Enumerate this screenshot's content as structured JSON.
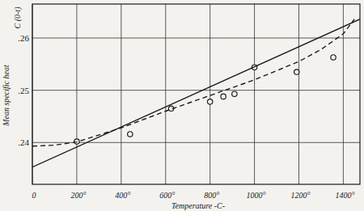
{
  "chart_data": {
    "type": "scatter",
    "xlabel": "Temperature -C-",
    "ylabel": "Mean specific heat",
    "annotations": [
      "C (0-t)"
    ],
    "xlim": [
      0,
      1475
    ],
    "ylim": [
      0.232,
      0.2665
    ],
    "xticks": [
      0,
      {
        "value": 200,
        "label": "200°"
      },
      {
        "value": 400,
        "label": "400°"
      },
      {
        "value": 600,
        "label": "600°"
      },
      {
        "value": 800,
        "label": "800°"
      },
      {
        "value": 1000,
        "label": "1000°"
      },
      {
        "value": 1200,
        "label": "1200°"
      },
      {
        "value": 1400,
        "label": "1400°"
      }
    ],
    "yticks": [
      {
        "value": 0.24,
        "label": ".24"
      },
      {
        "value": 0.25,
        "label": ".25"
      },
      {
        "value": 0.26,
        "label": ".26"
      }
    ],
    "grid": true,
    "series": [
      {
        "type": "scatter",
        "marker": "circle",
        "color": "#1a1a1a",
        "x": [
          200,
          440,
          625,
          800,
          860,
          910,
          1000,
          1190,
          1355
        ],
        "values": [
          0.2402,
          0.2416,
          0.2465,
          0.2478,
          0.2488,
          0.2493,
          0.2544,
          0.2535,
          0.2563
        ]
      },
      {
        "type": "line",
        "line_style": "solid",
        "color": "#1a1a1a",
        "x": [
          0,
          1475
        ],
        "values": [
          0.2353,
          0.2636
        ]
      },
      {
        "type": "line",
        "line_style": "dashed",
        "color": "#1a1a1a",
        "x": [
          0,
          100,
          200,
          400,
          600,
          800,
          1000,
          1200,
          1300,
          1400,
          1450
        ],
        "values": [
          0.2393,
          0.2395,
          0.2401,
          0.2428,
          0.246,
          0.249,
          0.252,
          0.2555,
          0.2578,
          0.2608,
          0.2636
        ]
      }
    ]
  }
}
